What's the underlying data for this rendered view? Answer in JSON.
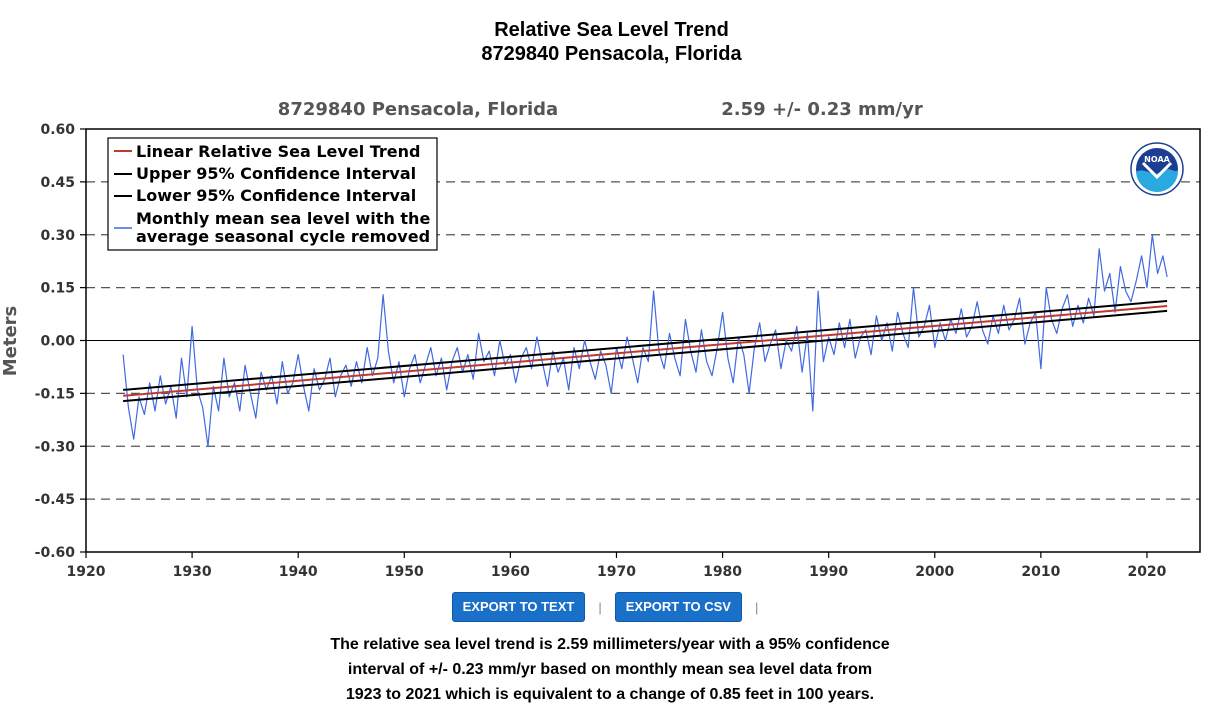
{
  "page": {
    "title_line1": "Relative Sea Level Trend",
    "title_line2": "8729840 Pensacola, Florida"
  },
  "chart_data": {
    "type": "line",
    "header_left": "8729840 Pensacola, Florida",
    "header_right": "2.59 +/-  0.23 mm/yr",
    "ylabel": "Meters",
    "xlim": [
      1920,
      2025
    ],
    "ylim": [
      -0.6,
      0.6
    ],
    "xticks": [
      "1920",
      "1930",
      "1940",
      "1950",
      "1960",
      "1970",
      "1980",
      "1990",
      "2000",
      "2010",
      "2020"
    ],
    "yticks": [
      "0.60",
      "0.45",
      "0.30",
      "0.15",
      "0.00",
      "-0.15",
      "-0.30",
      "-0.45",
      "-0.60"
    ],
    "grid": "horizontal dashed",
    "legend_position": "top-left",
    "logo": "NOAA",
    "series": [
      {
        "name": "Linear Relative Sea Level Trend",
        "color": "#c0392b",
        "x": [
          1923.5,
          2021.9
        ],
        "y": [
          -0.157,
          0.098
        ]
      },
      {
        "name": "Upper 95% Confidence Interval",
        "color": "#000000",
        "x": [
          1923.5,
          2021.9
        ],
        "y": [
          -0.14,
          0.112
        ]
      },
      {
        "name": "Lower 95% Confidence Interval",
        "color": "#000000",
        "x": [
          1923.5,
          2021.9
        ],
        "y": [
          -0.172,
          0.084
        ]
      },
      {
        "name": "Monthly mean sea level with the average seasonal cycle removed",
        "legend_lines": [
          "Monthly mean sea level with the",
          "average seasonal cycle removed"
        ],
        "color": "#4169e1",
        "x": [
          1923.5,
          1924,
          1924.5,
          1925,
          1925.5,
          1926,
          1926.5,
          1927,
          1927.5,
          1928,
          1928.5,
          1929,
          1929.5,
          1930,
          1930.5,
          1931,
          1931.5,
          1932,
          1932.5,
          1933,
          1933.5,
          1934,
          1934.5,
          1935,
          1935.5,
          1936,
          1936.5,
          1937,
          1937.5,
          1938,
          1938.5,
          1939,
          1939.5,
          1940,
          1940.5,
          1941,
          1941.5,
          1942,
          1942.5,
          1943,
          1943.5,
          1944,
          1944.5,
          1945,
          1945.5,
          1946,
          1946.5,
          1947,
          1947.5,
          1948,
          1948.5,
          1949,
          1949.5,
          1950,
          1950.5,
          1951,
          1951.5,
          1952,
          1952.5,
          1953,
          1953.5,
          1954,
          1954.5,
          1955,
          1955.5,
          1956,
          1956.5,
          1957,
          1957.5,
          1958,
          1958.5,
          1959,
          1959.5,
          1960,
          1960.5,
          1961,
          1961.5,
          1962,
          1962.5,
          1963,
          1963.5,
          1964,
          1964.5,
          1965,
          1965.5,
          1966,
          1966.5,
          1967,
          1967.5,
          1968,
          1968.5,
          1969,
          1969.5,
          1970,
          1970.5,
          1971,
          1971.5,
          1972,
          1972.5,
          1973,
          1973.5,
          1974,
          1974.5,
          1975,
          1975.5,
          1976,
          1976.5,
          1977,
          1977.5,
          1978,
          1978.5,
          1979,
          1979.5,
          1980,
          1980.5,
          1981,
          1981.5,
          1982,
          1982.5,
          1983,
          1983.5,
          1984,
          1984.5,
          1985,
          1985.5,
          1986,
          1986.5,
          1987,
          1987.5,
          1988,
          1988.5,
          1989,
          1989.5,
          1990,
          1990.5,
          1991,
          1991.5,
          1992,
          1992.5,
          1993,
          1993.5,
          1994,
          1994.5,
          1995,
          1995.5,
          1996,
          1996.5,
          1997,
          1997.5,
          1998,
          1998.5,
          1999,
          1999.5,
          2000,
          2000.5,
          2001,
          2001.5,
          2002,
          2002.5,
          2003,
          2003.5,
          2004,
          2004.5,
          2005,
          2005.5,
          2006,
          2006.5,
          2007,
          2007.5,
          2008,
          2008.5,
          2009,
          2009.5,
          2010,
          2010.5,
          2011,
          2011.5,
          2012,
          2012.5,
          2013,
          2013.5,
          2014,
          2014.5,
          2015,
          2015.5,
          2016,
          2016.5,
          2017,
          2017.5,
          2018,
          2018.5,
          2019,
          2019.5,
          2020,
          2020.5,
          2021,
          2021.5,
          2021.9
        ],
        "y": [
          -0.04,
          -0.19,
          -0.28,
          -0.16,
          -0.21,
          -0.12,
          -0.2,
          -0.1,
          -0.18,
          -0.13,
          -0.22,
          -0.05,
          -0.16,
          0.04,
          -0.14,
          -0.19,
          -0.3,
          -0.13,
          -0.2,
          -0.05,
          -0.16,
          -0.12,
          -0.2,
          -0.07,
          -0.15,
          -0.22,
          -0.09,
          -0.14,
          -0.1,
          -0.18,
          -0.06,
          -0.15,
          -0.12,
          -0.04,
          -0.13,
          -0.2,
          -0.08,
          -0.14,
          -0.11,
          -0.05,
          -0.16,
          -0.1,
          -0.07,
          -0.13,
          -0.06,
          -0.12,
          -0.02,
          -0.1,
          -0.05,
          0.13,
          -0.03,
          -0.12,
          -0.06,
          -0.16,
          -0.08,
          -0.04,
          -0.12,
          -0.07,
          -0.02,
          -0.1,
          -0.05,
          -0.14,
          -0.06,
          -0.02,
          -0.09,
          -0.04,
          -0.11,
          0.02,
          -0.06,
          -0.03,
          -0.1,
          0.0,
          -0.07,
          -0.04,
          -0.12,
          -0.05,
          -0.02,
          -0.08,
          0.01,
          -0.06,
          -0.13,
          -0.03,
          -0.09,
          -0.05,
          -0.14,
          -0.02,
          -0.08,
          0.0,
          -0.06,
          -0.11,
          -0.03,
          -0.07,
          -0.15,
          -0.02,
          -0.08,
          0.01,
          -0.05,
          -0.12,
          -0.02,
          -0.06,
          0.14,
          -0.03,
          -0.08,
          0.02,
          -0.05,
          -0.1,
          0.06,
          -0.03,
          -0.09,
          0.03,
          -0.06,
          -0.1,
          -0.02,
          0.08,
          -0.05,
          -0.12,
          0.01,
          -0.04,
          -0.15,
          -0.02,
          0.05,
          -0.06,
          -0.01,
          0.03,
          -0.08,
          0.0,
          -0.03,
          0.04,
          -0.09,
          0.02,
          -0.2,
          0.14,
          -0.06,
          0.01,
          -0.04,
          0.05,
          -0.02,
          0.06,
          -0.05,
          0.01,
          0.03,
          -0.04,
          0.07,
          0.0,
          0.05,
          -0.03,
          0.08,
          0.02,
          -0.02,
          0.15,
          0.01,
          0.04,
          0.1,
          -0.02,
          0.05,
          0.0,
          0.06,
          0.02,
          0.09,
          0.01,
          0.04,
          0.11,
          0.03,
          -0.01,
          0.07,
          0.02,
          0.1,
          0.03,
          0.06,
          0.12,
          -0.01,
          0.05,
          0.08,
          -0.08,
          0.15,
          0.06,
          0.02,
          0.09,
          0.13,
          0.04,
          0.1,
          0.05,
          0.12,
          0.07,
          0.26,
          0.14,
          0.19,
          0.08,
          0.21,
          0.14,
          0.11,
          0.17,
          0.24,
          0.15,
          0.3,
          0.19,
          0.24,
          0.18
        ]
      }
    ]
  },
  "actions": {
    "export_text": "EXPORT TO TEXT",
    "export_csv": "EXPORT TO CSV",
    "separator": "|"
  },
  "summary": {
    "line1": "The relative sea level trend is 2.59 millimeters/year with a 95% confidence",
    "line2": "interval of +/- 0.23 mm/yr based on monthly mean sea level data from",
    "line3": "1923 to 2021 which is equivalent to a change of 0.85 feet in 100 years."
  }
}
